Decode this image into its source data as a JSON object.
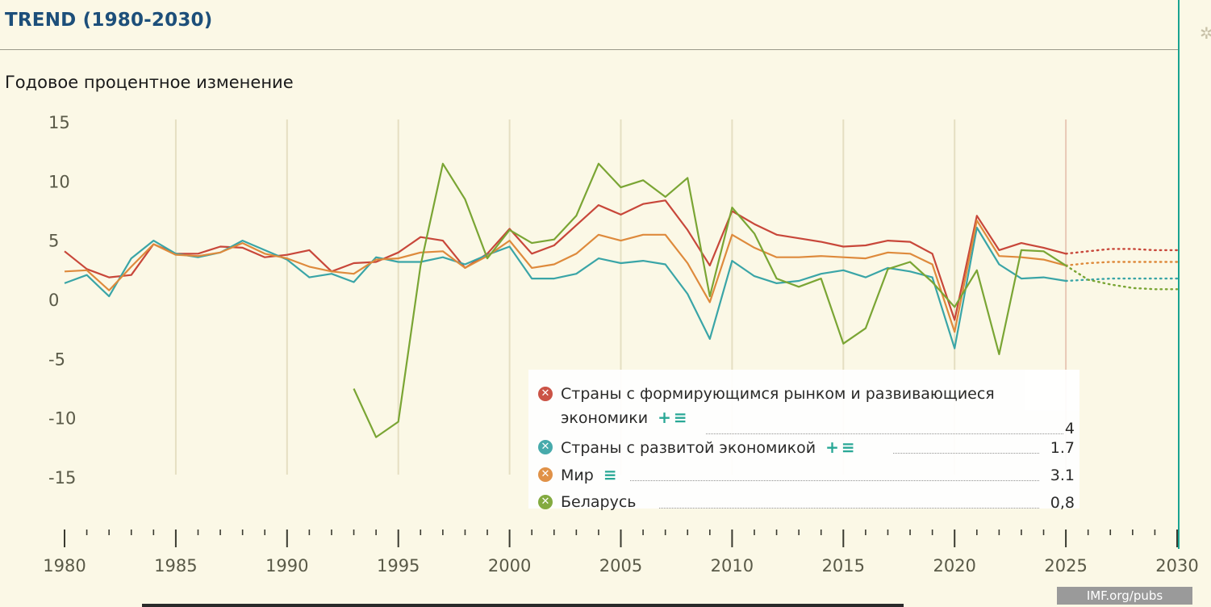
{
  "header": {
    "title": "TREND (1980-2030)"
  },
  "subtitle": "Годовое процентное изменение",
  "badge": {
    "label": "IMF.org/pubs"
  },
  "icons": {
    "settings": "gear-icon",
    "add": "plus-icon",
    "menu": "list-icon",
    "series": "x-circle-icon"
  },
  "chart_data": {
    "type": "line",
    "title": "TREND (1980-2030)",
    "ylabel": "Годовое процентное изменение",
    "xlim": [
      1980,
      2030
    ],
    "ylim": [
      -15,
      15
    ],
    "yticks": [
      15,
      10,
      5,
      0,
      -5,
      -10,
      -15
    ],
    "ytick_labels": [
      "15",
      "10",
      "5",
      "0",
      "-5",
      "-10",
      "-15"
    ],
    "xticks": [
      1980,
      1985,
      1990,
      1995,
      2000,
      2005,
      2010,
      2015,
      2020,
      2025,
      2030
    ],
    "xtick_labels": [
      "1980",
      "1985",
      "1990",
      "1995",
      "2000",
      "2005",
      "2010",
      "2015",
      "2020",
      "2025",
      "2030"
    ],
    "forecast_start": 2025,
    "series": [
      {
        "name": "Страны с формирующимся рынком и развивающиеся экономики",
        "legend_value": "4",
        "color": "#c8473a",
        "tools": "+≡",
        "x": [
          1980,
          1981,
          1982,
          1983,
          1984,
          1985,
          1986,
          1987,
          1988,
          1989,
          1990,
          1991,
          1992,
          1993,
          1994,
          1995,
          1996,
          1997,
          1998,
          1999,
          2000,
          2001,
          2002,
          2003,
          2004,
          2005,
          2006,
          2007,
          2008,
          2009,
          2010,
          2011,
          2012,
          2013,
          2014,
          2015,
          2016,
          2017,
          2018,
          2019,
          2020,
          2021,
          2022,
          2023,
          2024,
          2025,
          2026,
          2027,
          2028,
          2029,
          2030
        ],
        "values": [
          4.0,
          2.5,
          1.8,
          2.0,
          4.6,
          3.8,
          3.8,
          4.4,
          4.3,
          3.5,
          3.7,
          4.1,
          2.3,
          3.0,
          3.1,
          3.9,
          5.2,
          4.9,
          2.6,
          3.8,
          5.9,
          3.8,
          4.5,
          6.2,
          7.9,
          7.1,
          8.0,
          8.3,
          5.8,
          2.8,
          7.4,
          6.3,
          5.4,
          5.1,
          4.8,
          4.4,
          4.5,
          4.9,
          4.8,
          3.8,
          -1.8,
          7.0,
          4.1,
          4.7,
          4.3,
          3.8,
          4.0,
          4.2,
          4.2,
          4.1,
          4.1
        ]
      },
      {
        "name": "Страны с развитой экономикой",
        "legend_value": "1.7",
        "color": "#3aa5a7",
        "tools": "+≡",
        "x": [
          1980,
          1981,
          1982,
          1983,
          1984,
          1985,
          1986,
          1987,
          1988,
          1989,
          1990,
          1991,
          1992,
          1993,
          1994,
          1995,
          1996,
          1997,
          1998,
          1999,
          2000,
          2001,
          2002,
          2003,
          2004,
          2005,
          2006,
          2007,
          2008,
          2009,
          2010,
          2011,
          2012,
          2013,
          2014,
          2015,
          2016,
          2017,
          2018,
          2019,
          2020,
          2021,
          2022,
          2023,
          2024,
          2025,
          2026,
          2027,
          2028,
          2029,
          2030
        ],
        "values": [
          1.3,
          2.0,
          0.2,
          3.4,
          4.9,
          3.8,
          3.5,
          3.9,
          4.9,
          4.1,
          3.3,
          1.8,
          2.1,
          1.4,
          3.5,
          3.1,
          3.1,
          3.5,
          2.9,
          3.7,
          4.4,
          1.7,
          1.7,
          2.1,
          3.4,
          3.0,
          3.2,
          2.9,
          0.4,
          -3.4,
          3.2,
          1.9,
          1.3,
          1.5,
          2.1,
          2.4,
          1.8,
          2.6,
          2.3,
          1.8,
          -4.2,
          6.0,
          2.9,
          1.7,
          1.8,
          1.5,
          1.6,
          1.7,
          1.7,
          1.7,
          1.7
        ]
      },
      {
        "name": "Мир",
        "legend_value": "3.1",
        "color": "#de8a3c",
        "tools": "≡",
        "x": [
          1980,
          1981,
          1982,
          1983,
          1984,
          1985,
          1986,
          1987,
          1988,
          1989,
          1990,
          1991,
          1992,
          1993,
          1994,
          1995,
          1996,
          1997,
          1998,
          1999,
          2000,
          2001,
          2002,
          2003,
          2004,
          2005,
          2006,
          2007,
          2008,
          2009,
          2010,
          2011,
          2012,
          2013,
          2014,
          2015,
          2016,
          2017,
          2018,
          2019,
          2020,
          2021,
          2022,
          2023,
          2024,
          2025,
          2026,
          2027,
          2028,
          2029,
          2030
        ],
        "values": [
          2.3,
          2.4,
          0.7,
          2.7,
          4.6,
          3.7,
          3.6,
          3.9,
          4.7,
          3.8,
          3.4,
          2.7,
          2.3,
          2.1,
          3.3,
          3.4,
          3.9,
          4.0,
          2.6,
          3.6,
          4.9,
          2.6,
          2.9,
          3.8,
          5.4,
          4.9,
          5.4,
          5.4,
          3.0,
          -0.3,
          5.4,
          4.3,
          3.5,
          3.5,
          3.6,
          3.5,
          3.4,
          3.9,
          3.8,
          2.9,
          -2.8,
          6.6,
          3.6,
          3.5,
          3.3,
          2.8,
          3.0,
          3.1,
          3.1,
          3.1,
          3.1
        ]
      },
      {
        "name": "Беларусь",
        "legend_value": "0,8",
        "color": "#7aa534",
        "tools": "",
        "x": [
          1993,
          1994,
          1995,
          1996,
          1997,
          1998,
          1999,
          2000,
          2001,
          2002,
          2003,
          2004,
          2005,
          2006,
          2007,
          2008,
          2009,
          2010,
          2011,
          2012,
          2013,
          2014,
          2015,
          2016,
          2017,
          2018,
          2019,
          2020,
          2021,
          2022,
          2023,
          2024,
          2025,
          2026,
          2027,
          2028,
          2029,
          2030
        ],
        "values": [
          -7.6,
          -11.7,
          -10.4,
          2.8,
          11.4,
          8.4,
          3.4,
          5.8,
          4.7,
          5.0,
          7.0,
          11.4,
          9.4,
          10.0,
          8.6,
          10.2,
          0.2,
          7.7,
          5.5,
          1.7,
          1.0,
          1.7,
          -3.8,
          -2.5,
          2.5,
          3.1,
          1.4,
          -0.7,
          2.4,
          -4.7,
          4.1,
          4.0,
          2.8,
          1.6,
          1.2,
          0.9,
          0.8,
          0.8
        ]
      }
    ]
  }
}
